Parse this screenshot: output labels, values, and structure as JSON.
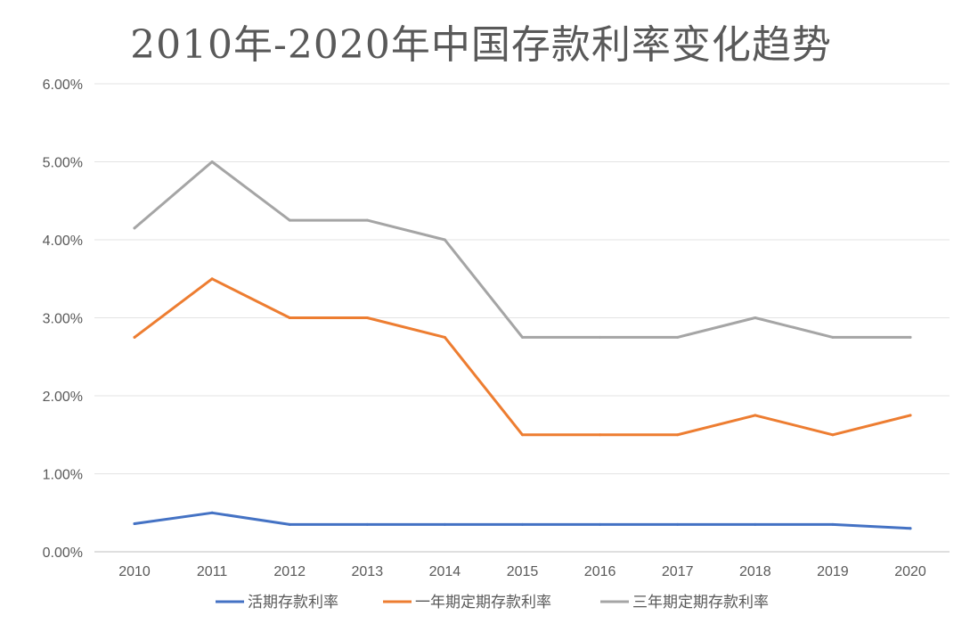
{
  "chart_data": {
    "type": "line",
    "title": "2010年-2020年中国存款利率变化趋势",
    "categories": [
      "2010",
      "2011",
      "2012",
      "2013",
      "2014",
      "2015",
      "2016",
      "2017",
      "2018",
      "2019",
      "2020"
    ],
    "y_ticks": [
      "0.00%",
      "1.00%",
      "2.00%",
      "3.00%",
      "4.00%",
      "5.00%",
      "6.00%"
    ],
    "ylim": [
      0,
      6
    ],
    "grid": "horizontal",
    "legend_position": "bottom",
    "series": [
      {
        "name": "活期存款利率",
        "color": "#4472C4",
        "values": [
          0.36,
          0.5,
          0.35,
          0.35,
          0.35,
          0.35,
          0.35,
          0.35,
          0.35,
          0.35,
          0.3
        ]
      },
      {
        "name": "一年期定期存款利率",
        "color": "#ED7D31",
        "values": [
          2.75,
          3.5,
          3.0,
          3.0,
          2.75,
          1.5,
          1.5,
          1.5,
          1.75,
          1.5,
          1.75
        ]
      },
      {
        "name": "三年期定期存款利率",
        "color": "#A5A5A5",
        "values": [
          4.15,
          5.0,
          4.25,
          4.25,
          4.0,
          2.75,
          2.75,
          2.75,
          3.0,
          2.75,
          2.75
        ]
      }
    ]
  }
}
